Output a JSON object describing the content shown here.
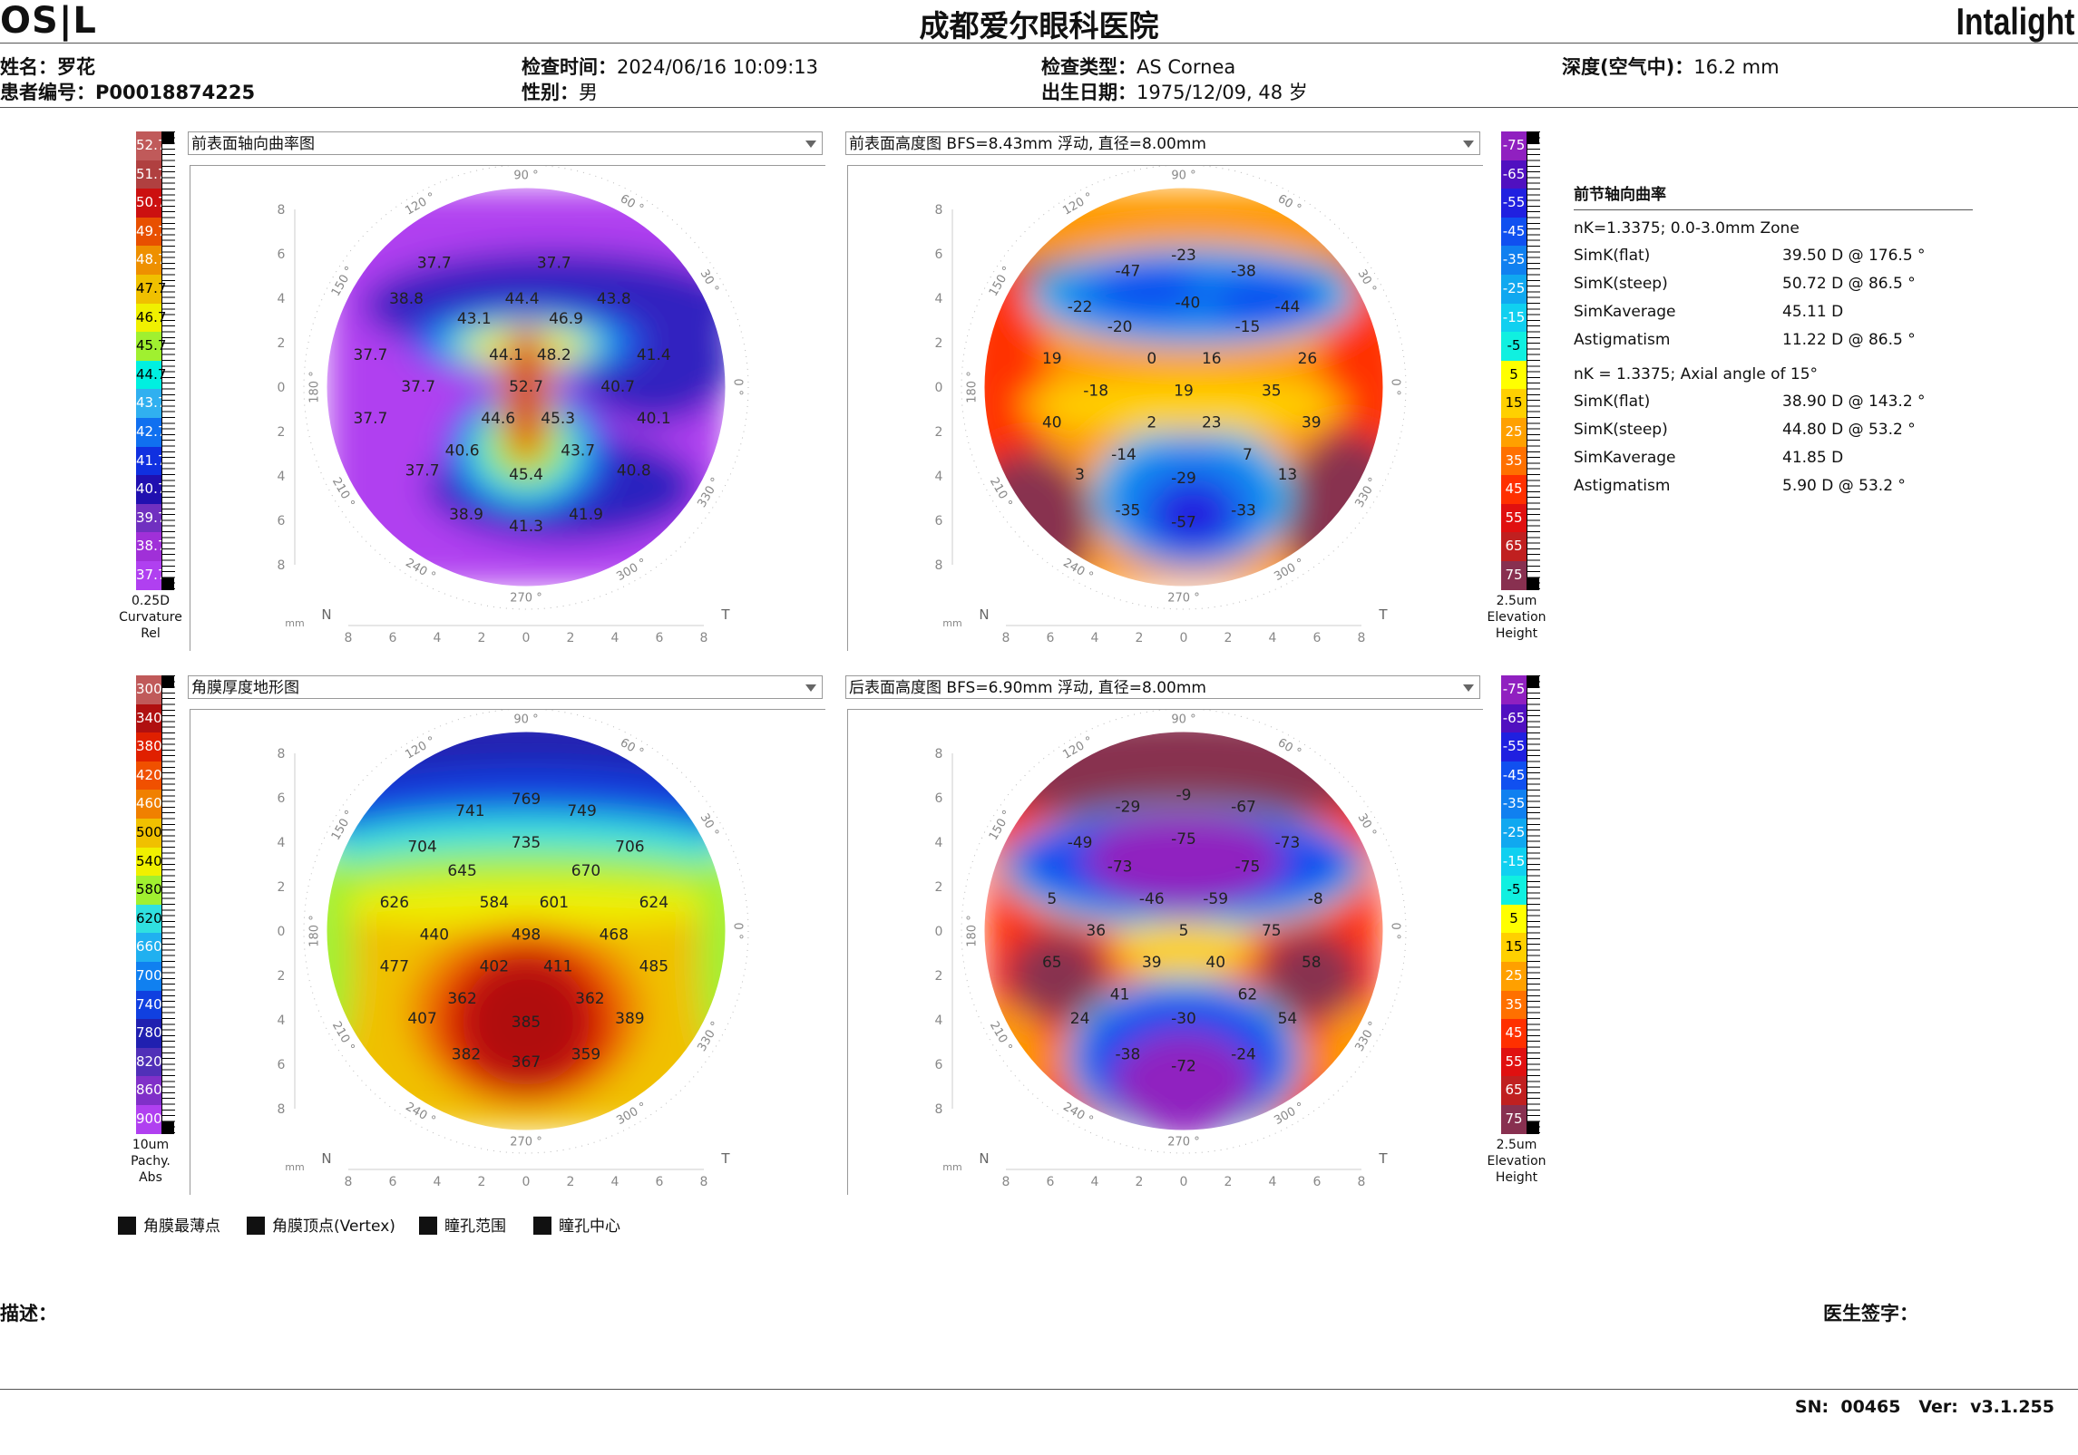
{
  "header": {
    "logo_left": "OS|L",
    "logo_right": "Intalight",
    "hospital": "成都爱尔眼科医院"
  },
  "patient": {
    "name_label": "姓名：",
    "name": "罗花",
    "id_label": "患者编号：",
    "id": "P00018874225",
    "exam_time_label": "检查时间：",
    "exam_time": "2024/06/16 10:09:13",
    "gender_label": "性别：",
    "gender": "男",
    "exam_type_label": "检查类型：",
    "exam_type": "AS Cornea",
    "dob_label": "出生日期：",
    "dob": "1975/12/09, 48 岁",
    "depth_label": "深度(空气中)：",
    "depth": "16.2 mm"
  },
  "panels": {
    "p1": {
      "title": "前表面轴向曲率图"
    },
    "p2": {
      "title": "前表面高度图 BFS=8.43mm 浮动, 直径=8.00mm"
    },
    "p3": {
      "title": "角膜厚度地形图"
    },
    "p4": {
      "title": "后表面高度图 BFS=6.90mm 浮动, 直径=8.00mm"
    }
  },
  "axis": {
    "deg90": "90 °",
    "deg60": "60 °",
    "deg30": "30 °",
    "deg0": "0 °",
    "deg330": "330 °",
    "deg300": "300 °",
    "deg270": "270 °",
    "deg240": "240 °",
    "deg210": "210 °",
    "deg180": "180 °",
    "deg150": "150 °",
    "deg120": "120 °",
    "y_ticks": [
      "8",
      "6",
      "4",
      "2",
      "0",
      "2",
      "4",
      "6",
      "8"
    ],
    "x_ticks": [
      "8",
      "6",
      "4",
      "2",
      "0",
      "2",
      "4",
      "6",
      "8"
    ],
    "n": "N",
    "t": "T",
    "mm": "mm"
  },
  "scales": {
    "curvature": {
      "values": [
        "52.7",
        "51.7",
        "50.7",
        "49.7",
        "48.7",
        "47.7",
        "46.7",
        "45.7",
        "44.7",
        "43.7",
        "42.7",
        "41.7",
        "40.7",
        "39.7",
        "38.7",
        "37.7"
      ],
      "colors": [
        "#c05a5a",
        "#b04040",
        "#cc1010",
        "#e85000",
        "#ee9000",
        "#f0c000",
        "#f0f000",
        "#a0f030",
        "#00f0e0",
        "#30b0f0",
        "#1070f0",
        "#1030e0",
        "#2010b0",
        "#7030c0",
        "#a030d8",
        "#b040f0"
      ],
      "caption": [
        "0.25D",
        "Curvature",
        "Rel"
      ]
    },
    "elevation": {
      "values": [
        "-75",
        "-65",
        "-55",
        "-45",
        "-35",
        "-25",
        "-15",
        "-5",
        "5",
        "15",
        "25",
        "35",
        "45",
        "55",
        "65",
        "75"
      ],
      "colors": [
        "#9020c0",
        "#5010c0",
        "#2020e0",
        "#1050f0",
        "#1080f0",
        "#10a8f0",
        "#10d0f0",
        "#10f0e0",
        "#ffff00",
        "#ffd000",
        "#ffa000",
        "#ff7000",
        "#ff3000",
        "#e01010",
        "#c02020",
        "#883050"
      ],
      "caption": [
        "2.5um",
        "Elevation",
        "Height"
      ]
    },
    "pachy": {
      "values": [
        "300",
        "340",
        "380",
        "420",
        "460",
        "500",
        "540",
        "580",
        "620",
        "660",
        "700",
        "740",
        "780",
        "820",
        "860",
        "900"
      ],
      "colors": [
        "#c05a5a",
        "#b01010",
        "#e02000",
        "#f05000",
        "#f08000",
        "#f0c000",
        "#f0f000",
        "#a0f030",
        "#30e0e0",
        "#20b0f0",
        "#1080f0",
        "#1040e0",
        "#2020b0",
        "#5030b8",
        "#8030c8",
        "#b040f0"
      ],
      "caption": [
        "10um",
        "Pachy.",
        "Abs"
      ]
    },
    "elevation2": {
      "values": [
        "-75",
        "-65",
        "-55",
        "-45",
        "-35",
        "-25",
        "-15",
        "-5",
        "5",
        "15",
        "25",
        "35",
        "45",
        "55",
        "65",
        "75"
      ],
      "caption": [
        "2.5um",
        "Elevation",
        "Height"
      ]
    }
  },
  "maps": {
    "p1": [
      [
        "37.7",
        0.27,
        0.19
      ],
      [
        "37.7",
        0.57,
        0.19
      ],
      [
        "38.8",
        0.2,
        0.28
      ],
      [
        "44.4",
        0.49,
        0.28
      ],
      [
        "43.8",
        0.72,
        0.28
      ],
      [
        "43.1",
        0.37,
        0.33
      ],
      [
        "46.9",
        0.6,
        0.33
      ],
      [
        "37.7",
        0.11,
        0.42
      ],
      [
        "44.1",
        0.45,
        0.42
      ],
      [
        "48.2",
        0.57,
        0.42
      ],
      [
        "41.4",
        0.82,
        0.42
      ],
      [
        "37.7",
        0.23,
        0.5
      ],
      [
        "52.7",
        0.5,
        0.5
      ],
      [
        "40.7",
        0.73,
        0.5
      ],
      [
        "37.7",
        0.11,
        0.58
      ],
      [
        "44.6",
        0.43,
        0.58
      ],
      [
        "45.3",
        0.58,
        0.58
      ],
      [
        "40.1",
        0.82,
        0.58
      ],
      [
        "40.6",
        0.34,
        0.66
      ],
      [
        "43.7",
        0.63,
        0.66
      ],
      [
        "37.7",
        0.24,
        0.71
      ],
      [
        "45.4",
        0.5,
        0.72
      ],
      [
        "40.8",
        0.77,
        0.71
      ],
      [
        "38.9",
        0.35,
        0.82
      ],
      [
        "41.9",
        0.65,
        0.82
      ],
      [
        "41.3",
        0.5,
        0.85
      ]
    ],
    "p2": [
      [
        "-23",
        0.5,
        0.17
      ],
      [
        "-47",
        0.36,
        0.21
      ],
      [
        "-38",
        0.65,
        0.21
      ],
      [
        "-22",
        0.24,
        0.3
      ],
      [
        "-40",
        0.51,
        0.29
      ],
      [
        "-44",
        0.76,
        0.3
      ],
      [
        "-20",
        0.34,
        0.35
      ],
      [
        "-15",
        0.66,
        0.35
      ],
      [
        "19",
        0.17,
        0.43
      ],
      [
        "0",
        0.42,
        0.43
      ],
      [
        "16",
        0.57,
        0.43
      ],
      [
        "26",
        0.81,
        0.43
      ],
      [
        "-18",
        0.28,
        0.51
      ],
      [
        "19",
        0.5,
        0.51
      ],
      [
        "35",
        0.72,
        0.51
      ],
      [
        "40",
        0.17,
        0.59
      ],
      [
        "2",
        0.42,
        0.59
      ],
      [
        "23",
        0.57,
        0.59
      ],
      [
        "39",
        0.82,
        0.59
      ],
      [
        "-14",
        0.35,
        0.67
      ],
      [
        "7",
        0.66,
        0.67
      ],
      [
        "3",
        0.24,
        0.72
      ],
      [
        "-29",
        0.5,
        0.73
      ],
      [
        "13",
        0.76,
        0.72
      ],
      [
        "-35",
        0.36,
        0.81
      ],
      [
        "-33",
        0.65,
        0.81
      ],
      [
        "-57",
        0.5,
        0.84
      ]
    ],
    "p3": [
      [
        "769",
        0.5,
        0.17
      ],
      [
        "741",
        0.36,
        0.2
      ],
      [
        "749",
        0.64,
        0.2
      ],
      [
        "704",
        0.24,
        0.29
      ],
      [
        "735",
        0.5,
        0.28
      ],
      [
        "706",
        0.76,
        0.29
      ],
      [
        "645",
        0.34,
        0.35
      ],
      [
        "670",
        0.65,
        0.35
      ],
      [
        "626",
        0.17,
        0.43
      ],
      [
        "584",
        0.42,
        0.43
      ],
      [
        "601",
        0.57,
        0.43
      ],
      [
        "624",
        0.82,
        0.43
      ],
      [
        "440",
        0.27,
        0.51
      ],
      [
        "498",
        0.5,
        0.51
      ],
      [
        "468",
        0.72,
        0.51
      ],
      [
        "477",
        0.17,
        0.59
      ],
      [
        "402",
        0.42,
        0.59
      ],
      [
        "411",
        0.58,
        0.59
      ],
      [
        "485",
        0.82,
        0.59
      ],
      [
        "362",
        0.34,
        0.67
      ],
      [
        "362",
        0.66,
        0.67
      ],
      [
        "407",
        0.24,
        0.72
      ],
      [
        "385",
        0.5,
        0.73
      ],
      [
        "389",
        0.76,
        0.72
      ],
      [
        "382",
        0.35,
        0.81
      ],
      [
        "359",
        0.65,
        0.81
      ],
      [
        "367",
        0.5,
        0.83
      ]
    ],
    "p4": [
      [
        "-9",
        0.5,
        0.16
      ],
      [
        "-29",
        0.36,
        0.19
      ],
      [
        "-67",
        0.65,
        0.19
      ],
      [
        "-49",
        0.24,
        0.28
      ],
      [
        "-75",
        0.5,
        0.27
      ],
      [
        "-73",
        0.76,
        0.28
      ],
      [
        "-73",
        0.34,
        0.34
      ],
      [
        "-75",
        0.66,
        0.34
      ],
      [
        "5",
        0.17,
        0.42
      ],
      [
        "-46",
        0.42,
        0.42
      ],
      [
        "-59",
        0.58,
        0.42
      ],
      [
        "-8",
        0.83,
        0.42
      ],
      [
        "36",
        0.28,
        0.5
      ],
      [
        "5",
        0.5,
        0.5
      ],
      [
        "75",
        0.72,
        0.5
      ],
      [
        "65",
        0.17,
        0.58
      ],
      [
        "39",
        0.42,
        0.58
      ],
      [
        "40",
        0.58,
        0.58
      ],
      [
        "58",
        0.82,
        0.58
      ],
      [
        "41",
        0.34,
        0.66
      ],
      [
        "62",
        0.66,
        0.66
      ],
      [
        "24",
        0.24,
        0.72
      ],
      [
        "-30",
        0.5,
        0.72
      ],
      [
        "54",
        0.76,
        0.72
      ],
      [
        "-38",
        0.36,
        0.81
      ],
      [
        "-24",
        0.65,
        0.81
      ],
      [
        "-72",
        0.5,
        0.84
      ]
    ]
  },
  "ktable": {
    "title": "前节轴向曲率",
    "zone1": "nK=1.3375; 0.0-3.0mm Zone",
    "rows1": [
      {
        "k": "SimK(flat)",
        "v": "39.50 D @ 176.5 °"
      },
      {
        "k": "SimK(steep)",
        "v": "50.72 D @ 86.5 °"
      },
      {
        "k": "SimKaverage",
        "v": "45.11 D"
      },
      {
        "k": "Astigmatism",
        "v": "11.22 D @ 86.5 °"
      }
    ],
    "zone2": "nK = 1.3375; Axial angle of 15°",
    "rows2": [
      {
        "k": "SimK(flat)",
        "v": "38.90 D @ 143.2 °"
      },
      {
        "k": "SimK(steep)",
        "v": "44.80 D @ 53.2 °"
      },
      {
        "k": "SimKaverage",
        "v": "41.85 D"
      },
      {
        "k": "Astigmatism",
        "v": "5.90 D @ 53.2 °"
      }
    ]
  },
  "legend": [
    "角膜最薄点",
    "角膜顶点(Vertex)",
    "瞳孔范围",
    "瞳孔中心"
  ],
  "footer": {
    "desc_label": "描述：",
    "doctor_label": "医生签字：",
    "sn_label": "SN:",
    "sn": "00465",
    "ver_label": "Ver:",
    "ver": "v3.1.255"
  }
}
